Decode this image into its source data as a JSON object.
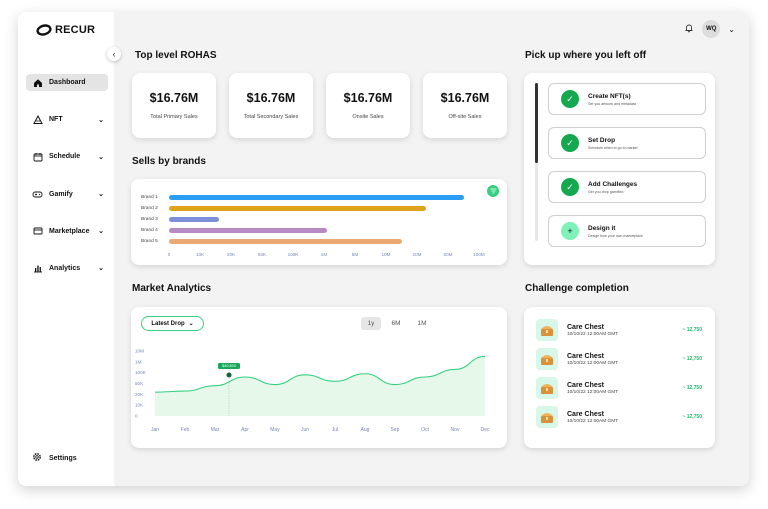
{
  "app": {
    "logo_text": "RECUR"
  },
  "sidebar": {
    "items": [
      {
        "label": "Dashboard",
        "icon": "home-icon"
      },
      {
        "label": "NFT",
        "icon": "nft-icon"
      },
      {
        "label": "Schedule",
        "icon": "calendar-icon"
      },
      {
        "label": "Gamify",
        "icon": "gamepad-icon"
      },
      {
        "label": "Marketplace",
        "icon": "marketplace-icon"
      },
      {
        "label": "Analytics",
        "icon": "analytics-icon"
      }
    ],
    "settings_label": "Settings"
  },
  "topbar": {
    "avatar_initials": "WQ"
  },
  "top_level": {
    "title": "Top level ROHAS",
    "stats": [
      {
        "value": "$16.76M",
        "label": "Total Primary Sales"
      },
      {
        "value": "$16.76M",
        "label": "Total Secondary Sales"
      },
      {
        "value": "$16.76M",
        "label": "Onsite Sales"
      },
      {
        "value": "$16.76M",
        "label": "Off-site Sales"
      }
    ]
  },
  "sells_by_brands": {
    "title": "Sells by brands",
    "chart_data": {
      "type": "bar",
      "orientation": "horizontal",
      "categories": [
        "Brand 1",
        "Brand 2",
        "Brand 3",
        "Brand 4",
        "Brand 5"
      ],
      "x_tick_labels": [
        "0",
        "10K",
        "20K",
        "50K",
        "100K",
        "1M",
        "5M",
        "10M",
        "20M",
        "50M",
        "100M"
      ],
      "values_in_tick_units": [
        9.5,
        8.3,
        1.6,
        5.1,
        7.5
      ],
      "colors": [
        "#2a9df4",
        "#e0a11b",
        "#7d8fd6",
        "#b88ac4",
        "#eba877"
      ]
    }
  },
  "pickup": {
    "title": "Pick up where you left off",
    "tasks": [
      {
        "title": "Create NFT(s)",
        "subtitle": "Set you artwork and metadata",
        "done": true
      },
      {
        "title": "Set Drop",
        "subtitle": "Schedule when to go to market",
        "done": true
      },
      {
        "title": "Add Challenges",
        "subtitle": "Get you drop gamified",
        "done": true
      },
      {
        "title": "Design it",
        "subtitle": "Design how your own marketplace",
        "done": false
      }
    ]
  },
  "market": {
    "title": "Market Analytics",
    "dropdown_label": "Latest Drop",
    "ranges": [
      "1y",
      "6M",
      "1M"
    ],
    "active_range": "1y",
    "tooltip": "$40,500",
    "chart_data": {
      "type": "area",
      "categories": [
        "Jan",
        "Feb",
        "Mar",
        "Apr",
        "May",
        "Jun",
        "Jul",
        "Aug",
        "Sep",
        "Oct",
        "Nov",
        "Dec"
      ],
      "y_tick_labels": [
        "10M",
        "1M",
        "100K",
        "50K",
        "20K",
        "10K",
        "0"
      ],
      "values_in_tick_units": [
        2.2,
        2.3,
        2.8,
        3.6,
        2.9,
        3.8,
        3.2,
        3.9,
        2.9,
        3.6,
        4.3,
        5.5
      ],
      "color": "#37d083"
    }
  },
  "challenge": {
    "title": "Challenge completion",
    "items": [
      {
        "name": "Care Chest",
        "date": "10/10/22 12:00AM GMT",
        "value": "~ 12,750"
      },
      {
        "name": "Care Chest",
        "date": "10/10/22 12:00AM GMT",
        "value": "~ 12,750"
      },
      {
        "name": "Care Chest",
        "date": "10/10/22 12:00AM GMT",
        "value": "~ 12,750"
      },
      {
        "name": "Care Chest",
        "date": "10/10/22 12:00AM GMT",
        "value": "~ 12,750"
      }
    ]
  }
}
